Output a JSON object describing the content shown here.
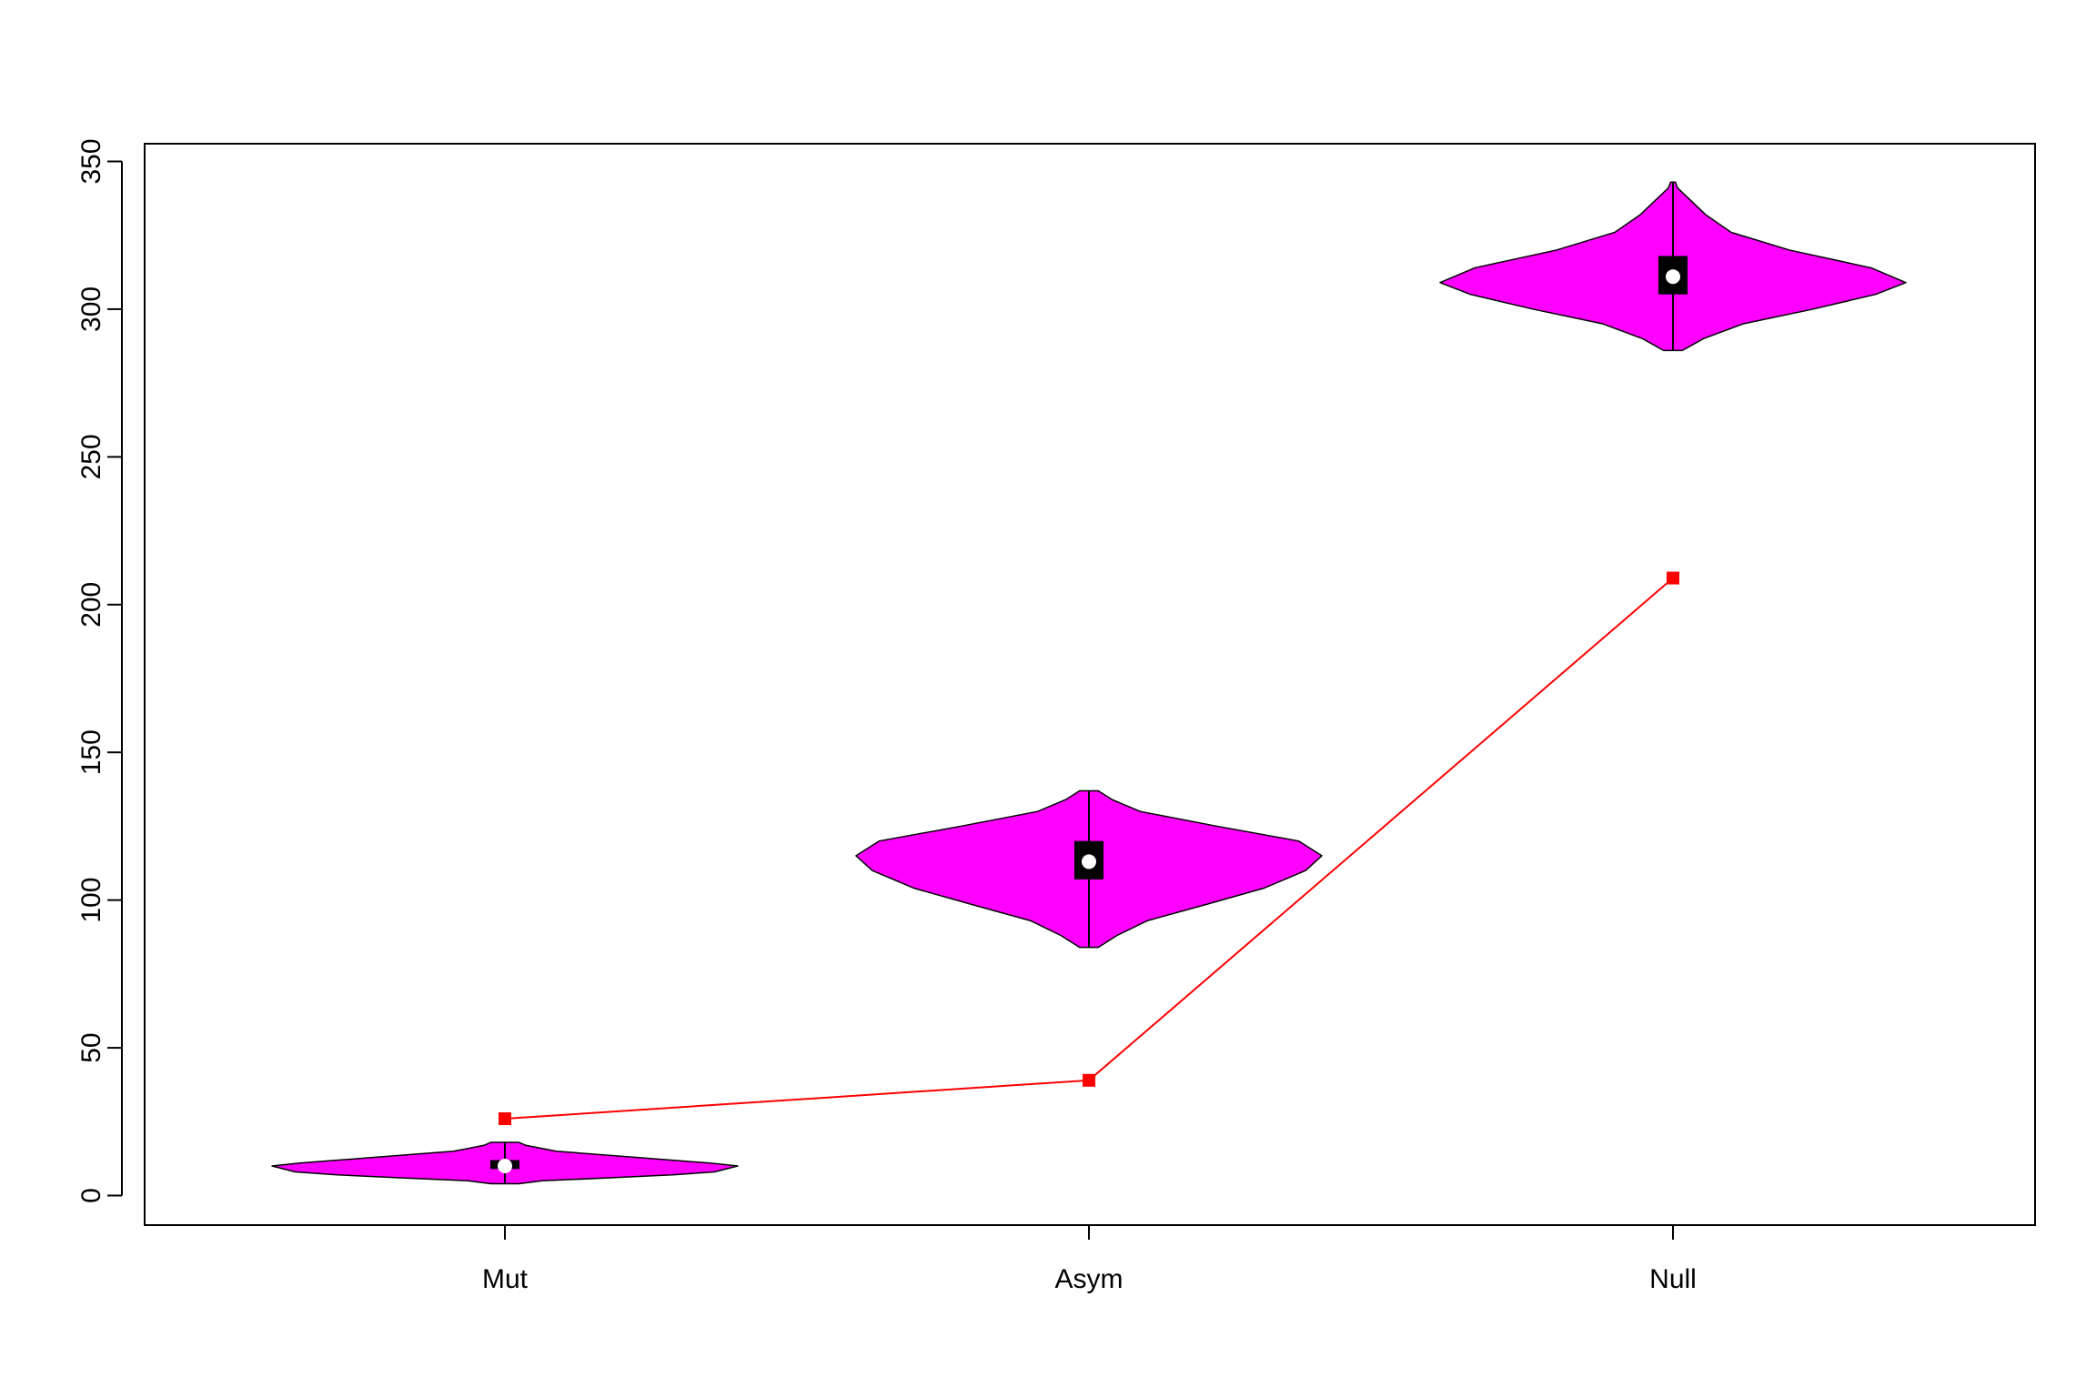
{
  "chart_data": {
    "type": "violin",
    "title": "",
    "xlabel": "",
    "ylabel": "",
    "categories": [
      "Mut",
      "Asym",
      "Null"
    ],
    "ylim": [
      -10,
      356
    ],
    "yticks": [
      0,
      50,
      100,
      150,
      200,
      250,
      300,
      350
    ],
    "violins": [
      {
        "category": "Mut",
        "min": 4,
        "max": 18,
        "q1": 9,
        "q3": 12,
        "median": 10,
        "density": [
          {
            "y": 4,
            "w": 0.06
          },
          {
            "y": 5,
            "w": 0.16
          },
          {
            "y": 6,
            "w": 0.45
          },
          {
            "y": 7,
            "w": 0.72
          },
          {
            "y": 8,
            "w": 0.9
          },
          {
            "y": 10,
            "w": 1.0
          },
          {
            "y": 11,
            "w": 0.88
          },
          {
            "y": 13,
            "w": 0.55
          },
          {
            "y": 15,
            "w": 0.22
          },
          {
            "y": 17,
            "w": 0.09
          },
          {
            "y": 18,
            "w": 0.06
          }
        ]
      },
      {
        "category": "Asym",
        "min": 84,
        "max": 137,
        "q1": 107,
        "q3": 120,
        "median": 113,
        "density": [
          {
            "y": 84,
            "w": 0.04
          },
          {
            "y": 88,
            "w": 0.12
          },
          {
            "y": 93,
            "w": 0.25
          },
          {
            "y": 98,
            "w": 0.48
          },
          {
            "y": 104,
            "w": 0.75
          },
          {
            "y": 110,
            "w": 0.93
          },
          {
            "y": 115,
            "w": 1.0
          },
          {
            "y": 120,
            "w": 0.9
          },
          {
            "y": 125,
            "w": 0.55
          },
          {
            "y": 130,
            "w": 0.22
          },
          {
            "y": 134,
            "w": 0.1
          },
          {
            "y": 137,
            "w": 0.04
          }
        ]
      },
      {
        "category": "Null",
        "min": 286,
        "max": 343,
        "q1": 305,
        "q3": 318,
        "median": 311,
        "density": [
          {
            "y": 286,
            "w": 0.04
          },
          {
            "y": 290,
            "w": 0.13
          },
          {
            "y": 295,
            "w": 0.3
          },
          {
            "y": 300,
            "w": 0.6
          },
          {
            "y": 305,
            "w": 0.87
          },
          {
            "y": 309,
            "w": 1.0
          },
          {
            "y": 314,
            "w": 0.85
          },
          {
            "y": 320,
            "w": 0.5
          },
          {
            "y": 326,
            "w": 0.25
          },
          {
            "y": 332,
            "w": 0.14
          },
          {
            "y": 338,
            "w": 0.06
          },
          {
            "y": 341,
            "w": 0.02
          },
          {
            "y": 343,
            "w": 0.01
          }
        ]
      }
    ],
    "series": [
      {
        "values": [
          26,
          39,
          209
        ],
        "color": "#ff0000",
        "marker": "square"
      }
    ],
    "violin_color": "#ff00ff",
    "box_color": "#000000",
    "median_color": "#ffffff",
    "grid": false
  }
}
